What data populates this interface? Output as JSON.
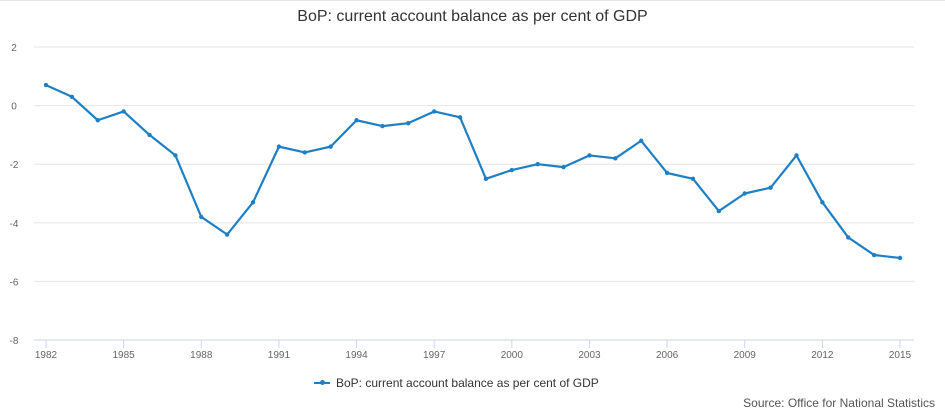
{
  "chart_data": {
    "type": "line",
    "title": "BoP: current account balance as per cent of GDP",
    "xlabel": "",
    "ylabel": "",
    "x": [
      1982,
      1983,
      1984,
      1985,
      1986,
      1987,
      1988,
      1989,
      1990,
      1991,
      1992,
      1993,
      1994,
      1995,
      1996,
      1997,
      1998,
      1999,
      2000,
      2001,
      2002,
      2003,
      2004,
      2005,
      2006,
      2007,
      2008,
      2009,
      2010,
      2011,
      2012,
      2013,
      2014,
      2015
    ],
    "series": [
      {
        "name": "BoP: current account balance as per cent of GDP",
        "color": "#1f7fc4",
        "values": [
          0.7,
          0.3,
          -0.5,
          -0.2,
          -1.0,
          -1.7,
          -3.8,
          -4.4,
          -3.3,
          -1.4,
          -1.6,
          -1.4,
          -0.5,
          -0.7,
          -0.6,
          -0.2,
          -0.4,
          -2.5,
          -2.2,
          -2.0,
          -2.1,
          -1.7,
          -1.8,
          -1.2,
          -2.3,
          -2.5,
          -3.6,
          -3.0,
          -2.8,
          -1.7,
          -3.3,
          -4.5,
          -5.1,
          -5.2
        ]
      }
    ],
    "ylim": [
      -8,
      2
    ],
    "yticks": [
      "2",
      "0",
      "-2",
      "-4",
      "-6",
      "-8"
    ],
    "ytick_values": [
      2,
      0,
      -2,
      -4,
      -6,
      -8
    ],
    "xticks": [
      "1982",
      "1985",
      "1988",
      "1991",
      "1994",
      "1997",
      "2000",
      "2003",
      "2006",
      "2009",
      "2012",
      "2015"
    ],
    "xtick_values": [
      1982,
      1985,
      1988,
      1991,
      1994,
      1997,
      2000,
      2003,
      2006,
      2009,
      2012,
      2015
    ],
    "grid": true,
    "legend": "bottom-center",
    "source": "Source: Office for National Statistics"
  }
}
